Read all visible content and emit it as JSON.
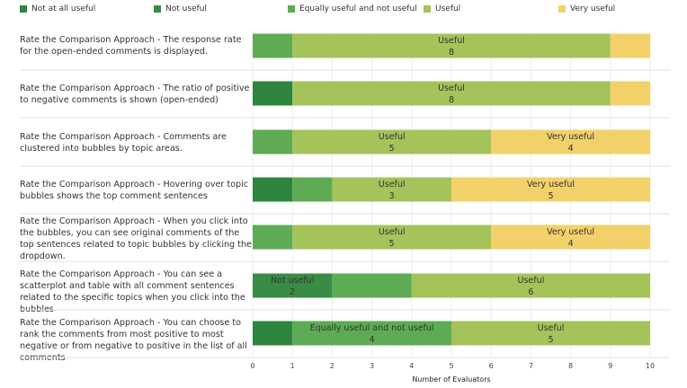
{
  "chart_data": {
    "type": "bar",
    "orientation": "horizontal",
    "stacked": true,
    "title": "",
    "xlabel": "Number of Evaluators",
    "ylabel": "",
    "xlim": [
      0,
      10
    ],
    "xticks": [
      0,
      1,
      2,
      3,
      4,
      5,
      6,
      7,
      8,
      9,
      10
    ],
    "legend_position": "top",
    "categories": [
      "Rate the Comparison Approach - The response rate for the open-ended comments is displayed.",
      "Rate the Comparison Approach - The ratio of positive to negative comments is shown (open-ended)",
      "Rate the Comparison Approach - Comments are clustered into bubbles by topic areas.",
      "Rate the Comparison Approach - Hovering over topic bubbles shows the top comment sentences",
      "Rate the Comparison Approach - When you click into the bubbles, you can see original comments of the top sentences related to topic bubbles by clicking the dropdown.",
      "Rate the Comparison Approach - You can see a scatterplot and table with all comment sentences related to the specific topics when you click into the bubbles",
      "Rate the Comparison Approach - You can choose to rank the comments from most positive to most negative or from negative to positive in the list of all comments"
    ],
    "series": [
      {
        "name": "Not at all useful",
        "color": "#2e8540",
        "values": [
          0,
          1,
          0,
          1,
          0,
          0,
          1
        ]
      },
      {
        "name": "Not useful",
        "color": "#3a8c45",
        "values": [
          0,
          0,
          0,
          0,
          0,
          2,
          0
        ]
      },
      {
        "name": "Equally useful and not useful",
        "color": "#5eab55",
        "values": [
          1,
          0,
          1,
          1,
          1,
          2,
          4
        ]
      },
      {
        "name": "Useful",
        "color": "#a4c35a",
        "values": [
          8,
          8,
          5,
          3,
          5,
          6,
          5
        ]
      },
      {
        "name": "Very useful",
        "color": "#f2d16b",
        "values": [
          1,
          1,
          4,
          5,
          4,
          0,
          0
        ]
      }
    ],
    "labeled_segments": [
      {
        "row": 0,
        "series": 3,
        "name": "Useful",
        "value": 8
      },
      {
        "row": 1,
        "series": 3,
        "name": "Useful",
        "value": 8
      },
      {
        "row": 2,
        "series": 3,
        "name": "Useful",
        "value": 5
      },
      {
        "row": 2,
        "series": 4,
        "name": "Very useful",
        "value": 4
      },
      {
        "row": 3,
        "series": 3,
        "name": "Useful",
        "value": 3
      },
      {
        "row": 3,
        "series": 4,
        "name": "Very useful",
        "value": 5
      },
      {
        "row": 4,
        "series": 3,
        "name": "Useful",
        "value": 5
      },
      {
        "row": 4,
        "series": 4,
        "name": "Very useful",
        "value": 4
      },
      {
        "row": 5,
        "series": 1,
        "name": "Not useful",
        "value": 2
      },
      {
        "row": 5,
        "series": 3,
        "name": "Useful",
        "value": 6
      },
      {
        "row": 6,
        "series": 2,
        "name": "Equally useful and not useful",
        "value": 4
      },
      {
        "row": 6,
        "series": 3,
        "name": "Useful",
        "value": 5
      }
    ]
  }
}
